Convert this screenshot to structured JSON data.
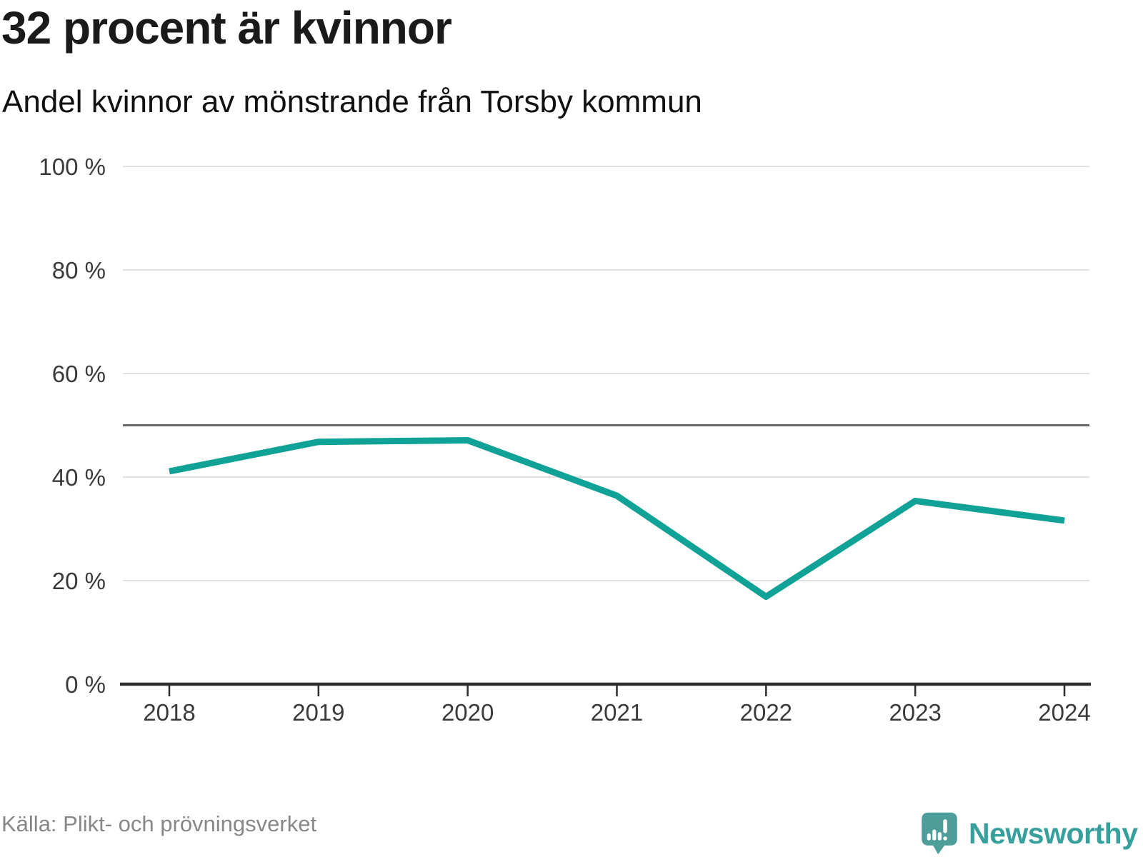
{
  "header": {
    "title": "32 procent är kvinnor",
    "subtitle": "Andel kvinnor av mönstrande från Torsby kommun"
  },
  "chart_data": {
    "type": "line",
    "title": "32 procent är kvinnor",
    "subtitle": "Andel kvinnor av mönstrande från Torsby kommun",
    "x": [
      "2018",
      "2019",
      "2020",
      "2021",
      "2022",
      "2023",
      "2024"
    ],
    "values": [
      41.1,
      46.8,
      47.1,
      36.4,
      16.9,
      35.4,
      31.6
    ],
    "unit": "%",
    "ylim": [
      0,
      100
    ],
    "y_ticks": [
      0,
      20,
      40,
      60,
      80,
      100
    ],
    "y_tick_labels": [
      "0 %",
      "20 %",
      "40 %",
      "60 %",
      "80 %",
      "100 %"
    ],
    "reference_line": 50,
    "grid": "horizontal",
    "legend": "none",
    "line_color": "#10a296"
  },
  "footer": {
    "source": "Källa: Plikt- och prövningsverket",
    "brand": "Newsworthy"
  },
  "icons": {
    "logo": "newsworthy-speech-bubble-bar-chart-exclamation-icon"
  },
  "colors": {
    "line": "#10a296",
    "grid": "#e1e1e1",
    "reference_line": "#686868",
    "axis": "#2d2d2d",
    "axis_text": "#3a3a3a",
    "title_text": "#1a1a1a",
    "source_text": "#878787",
    "logo_icon": "#4d9e9b",
    "logo_text": "#38a09c"
  }
}
